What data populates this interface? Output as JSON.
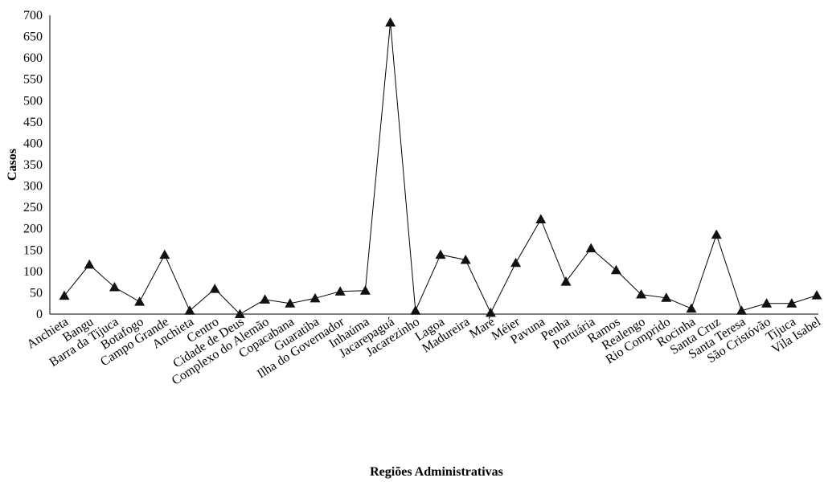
{
  "chart_data": {
    "type": "line",
    "title": "",
    "xlabel": "Regiões Administrativas",
    "ylabel": "Casos",
    "ylim": [
      0,
      700
    ],
    "yticks": [
      0,
      50,
      100,
      150,
      200,
      250,
      300,
      350,
      400,
      450,
      500,
      550,
      600,
      650,
      700
    ],
    "grid": false,
    "legend": "none",
    "line_color": "#000000",
    "marker": "triangle",
    "categories": [
      "Anchieta",
      "Bangu",
      "Barra da Tijuca",
      "Botafogo",
      "Campo Grande",
      "Anchieta",
      "Centro",
      "Cidade de Deus",
      "Complexo do Alemão",
      "Copacabana",
      "Guaratiba",
      "Ilha do Governador",
      "Inhaúma",
      "Jacarepaguá",
      "Jacarezinho",
      "Lagoa",
      "Madureira",
      "Maré",
      "Méier",
      "Pavuna",
      "Penha",
      "Portuária",
      "Ramos",
      "Realengo",
      "Rio Comprido",
      "Rocinha",
      "Santa Cruz",
      "Santa Teresa",
      "São Cristóvão",
      "Tijuca",
      "Vila Isabel"
    ],
    "series": [
      {
        "values": [
          43,
          116,
          63,
          29,
          139,
          8,
          59,
          0,
          34,
          25,
          37,
          53,
          55,
          683,
          8,
          139,
          127,
          3,
          120,
          222,
          76,
          154,
          103,
          46,
          38,
          13,
          186,
          8,
          25,
          25,
          44
        ]
      }
    ]
  }
}
